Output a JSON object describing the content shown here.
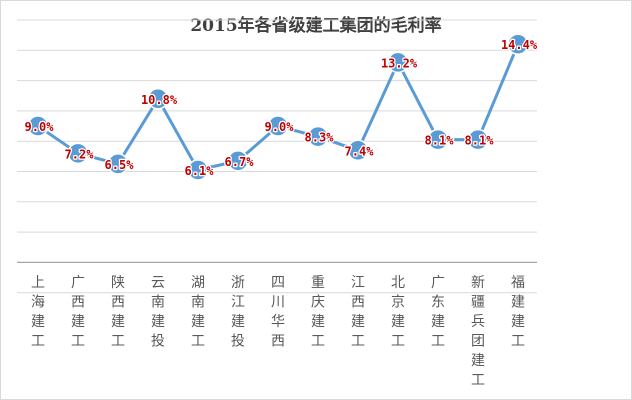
{
  "chart_data": {
    "type": "line",
    "title": "2015年各省级建工集团的毛利率",
    "categories": [
      "上海建工",
      "广西建工",
      "陕西建工",
      "云南建投",
      "湖南建工",
      "浙江建投",
      "四川华西",
      "重庆建工",
      "江西建工",
      "北京建工",
      "广东建工",
      "新疆兵团建工",
      "福建建工"
    ],
    "values": [
      9.0,
      7.2,
      6.5,
      10.8,
      6.1,
      6.7,
      9.0,
      8.3,
      7.4,
      13.2,
      8.1,
      8.1,
      14.4
    ],
    "data_labels": [
      "9.0%",
      "7.2%",
      "6.5%",
      "10.8%",
      "6.1%",
      "6.7%",
      "9.0%",
      "8.3%",
      "7.4%",
      "13.2%",
      "8.1%",
      "8.1%",
      "14.4%"
    ],
    "ylim": [
      -2,
      16
    ],
    "gridlines": true,
    "legend": "none",
    "colors": {
      "line": "#5b9bd5",
      "marker_fill": "#5b9bd5",
      "marker_stroke": "#ffffff",
      "label": "#c00000",
      "label_outline": "#ffffff",
      "grid": "#d9d9d9",
      "axis_text": "#595959"
    }
  }
}
